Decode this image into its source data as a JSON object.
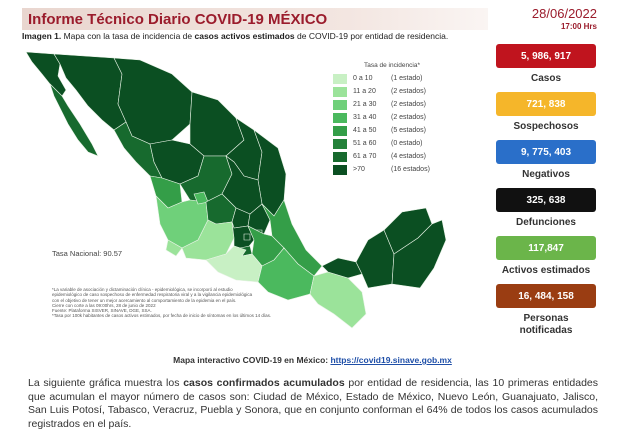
{
  "header": {
    "title": "Informe Técnico Diario COVID-19 MÉXICO",
    "date": "28/06/2022",
    "time": "17:00 Hrs"
  },
  "caption": {
    "prefix": "Imagen 1.",
    "text_before": " Mapa con la tasa de incidencia de ",
    "bold": "casos activos estimados",
    "text_after": " de COVID-19 por entidad de residencia."
  },
  "legend": {
    "title": "Tasa de incidencia*",
    "items": [
      {
        "range": "0 a 10",
        "count": "(1 estado)",
        "color": "#c8f0c4"
      },
      {
        "range": "11 a 20",
        "count": "(2 estados)",
        "color": "#9be39a"
      },
      {
        "range": "21 a 30",
        "count": "(2 estados)",
        "color": "#6fd07a"
      },
      {
        "range": "31 a 40",
        "count": "(2 estados)",
        "color": "#4bb95e"
      },
      {
        "range": "41 a 50",
        "count": "(5 estados)",
        "color": "#349e48"
      },
      {
        "range": "51 a 60",
        "count": "(0 estado)",
        "color": "#24823a"
      },
      {
        "range": "61 a 70",
        "count": "(4 estados)",
        "color": "#176a2e"
      },
      {
        "range": ">70",
        "count": "(16 estados)",
        "color": "#0b4f22"
      }
    ]
  },
  "tasa_nacional": "Tasa Nacional: 90.57",
  "notes": [
    "*La variable de asociación y dictaminación clínica - epidemiológica, se incorporó al estudio",
    "epidemiológico de caso sospechoso de enfermedad respiratoria viral y a la vigilancia epidemiológica",
    "con el objetivo de tener un mejor acercamiento al comportamiento de la epidemia en el país.",
    "Cierre con corte a las 09:00hrs, 28 de junio de 2022",
    "Fuente: Plataforma SISVER, SINAVE, DGE, SSA.",
    "*Tasa por 100k habitantes de casos activos estimados, por fecha de inicio de síntomas en los últimos 14 días."
  ],
  "stats": [
    {
      "value": "5, 986, 917",
      "label": "Casos",
      "color": "#c0141e"
    },
    {
      "value": "721, 838",
      "label": "Sospechosos",
      "color": "#f5b62a"
    },
    {
      "value": "9, 775, 403",
      "label": "Negativos",
      "color": "#2a6fc9"
    },
    {
      "value": "325, 638",
      "label": "Defunciones",
      "color": "#111111"
    },
    {
      "value": "117,847",
      "label": "Activos estimados",
      "color": "#6bb54a"
    },
    {
      "value": "16, 484, 158",
      "label": "Personas notificadas",
      "color": "#9a3d12"
    }
  ],
  "link": {
    "label": "Mapa interactivo COVID-19 en México: ",
    "url": "https://covid19.sinave.gob.mx"
  },
  "paragraph": {
    "t1": "La siguiente gráfica muestra los ",
    "b1": "casos confirmados acumulados",
    "t2": " por entidad de residencia, las 10 primeras entidades que acumulan el mayor número de casos son: Ciudad de México, Estado de México, Nuevo León, Guanajuato, Jalisco, San Luis Potosí, Tabasco, Veracruz, Puebla y Sonora, que en conjunto conforman el 64% de todos los casos acumulados registrados en el país."
  }
}
